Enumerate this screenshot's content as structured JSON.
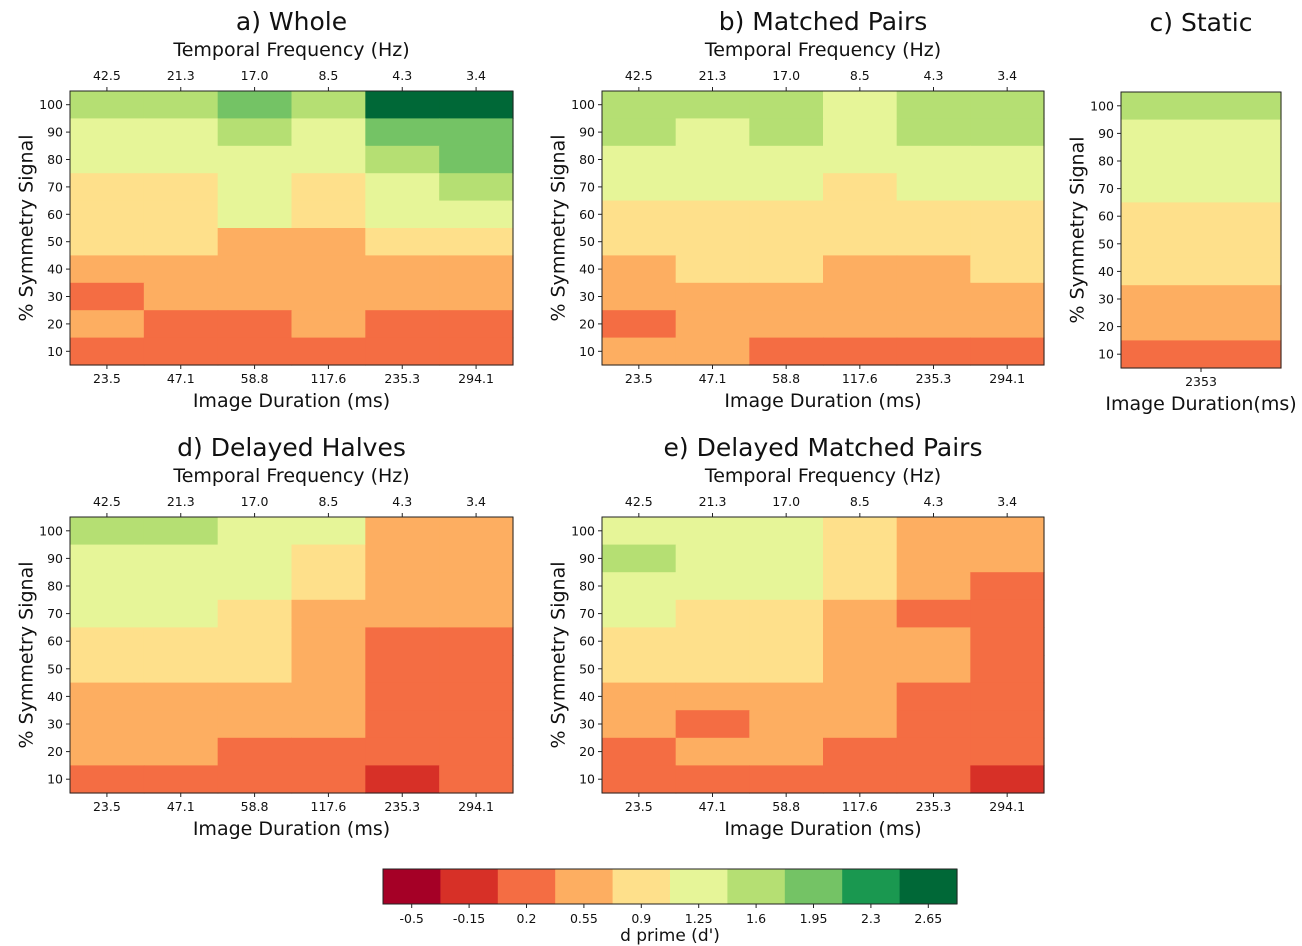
{
  "colormap": {
    "colors": [
      "#a50026",
      "#d73027",
      "#f46d43",
      "#fdae61",
      "#fee08b",
      "#e6f598",
      "#b5df73",
      "#74c365",
      "#1a9850",
      "#006837"
    ],
    "ticks": [
      "-0.5",
      "-0.15",
      "0.2",
      "0.55",
      "0.9",
      "1.25",
      "1.6",
      "1.95",
      "2.3",
      "2.65"
    ],
    "vmin": -0.675,
    "vmax": 2.825,
    "label": "d prime (d')"
  },
  "chart_data": [
    {
      "type": "heatmap",
      "title": "a) Whole",
      "top_xlabel": "Temporal Frequency (Hz)",
      "top_ticks": [
        "42.5",
        "21.3",
        "17.0",
        "8.5",
        "4.3",
        "3.4"
      ],
      "xlabel": "Image Duration (ms)",
      "x": [
        "23.5",
        "47.1",
        "58.8",
        "117.6",
        "235.3",
        "294.1"
      ],
      "ylabel": "% Symmetry Signal",
      "y": [
        100,
        90,
        80,
        70,
        60,
        50,
        40,
        30,
        20,
        10
      ],
      "values": [
        [
          1.45,
          1.5,
          1.85,
          1.75,
          2.65,
          2.65
        ],
        [
          1.3,
          1.3,
          1.55,
          1.3,
          1.95,
          2.0
        ],
        [
          1.1,
          1.2,
          1.3,
          1.25,
          1.6,
          1.85
        ],
        [
          1.05,
          0.95,
          1.25,
          0.95,
          1.3,
          1.45
        ],
        [
          0.85,
          0.8,
          1.2,
          0.75,
          1.15,
          1.15
        ],
        [
          0.8,
          0.75,
          0.7,
          0.65,
          0.95,
          0.95
        ],
        [
          0.6,
          0.65,
          0.7,
          0.7,
          0.7,
          0.7
        ],
        [
          0.35,
          0.55,
          0.6,
          0.65,
          0.45,
          0.5
        ],
        [
          0.4,
          0.25,
          0.3,
          0.4,
          0.3,
          0.3
        ],
        [
          0.15,
          0.2,
          0.3,
          0.1,
          0.1,
          0.1
        ]
      ]
    },
    {
      "type": "heatmap",
      "title": "b) Matched Pairs",
      "top_xlabel": "Temporal Frequency (Hz)",
      "top_ticks": [
        "42.5",
        "21.3",
        "17.0",
        "8.5",
        "4.3",
        "3.4"
      ],
      "xlabel": "Image Duration (ms)",
      "x": [
        "23.5",
        "47.1",
        "58.8",
        "117.6",
        "235.3",
        "294.1"
      ],
      "ylabel": "% Symmetry Signal",
      "y": [
        100,
        90,
        80,
        70,
        60,
        50,
        40,
        30,
        20,
        10
      ],
      "values": [
        [
          1.5,
          1.5,
          1.5,
          1.4,
          1.45,
          1.6
        ],
        [
          1.45,
          1.3,
          1.45,
          1.3,
          1.55,
          1.55
        ],
        [
          1.4,
          1.4,
          1.25,
          1.25,
          1.35,
          1.4
        ],
        [
          1.25,
          1.15,
          1.2,
          1.05,
          1.3,
          1.4
        ],
        [
          1.0,
          0.95,
          0.95,
          0.95,
          1.0,
          1.0
        ],
        [
          0.8,
          0.95,
          0.85,
          0.8,
          0.85,
          1.0
        ],
        [
          0.7,
          0.75,
          0.75,
          0.65,
          0.65,
          0.85
        ],
        [
          0.6,
          0.7,
          0.55,
          0.45,
          0.55,
          0.6
        ],
        [
          0.3,
          0.6,
          0.5,
          0.4,
          0.4,
          0.5
        ],
        [
          0.5,
          0.4,
          0.3,
          0.15,
          0.3,
          0.35
        ]
      ]
    },
    {
      "type": "heatmap",
      "title": "c) Static",
      "xlabel": "Image Duration(ms)",
      "x": [
        "2353"
      ],
      "ylabel": "% Symmetry Signal",
      "y": [
        100,
        90,
        80,
        70,
        60,
        50,
        40,
        30,
        20,
        10
      ],
      "values": [
        [
          1.45
        ],
        [
          1.4
        ],
        [
          1.4
        ],
        [
          1.15
        ],
        [
          1.0
        ],
        [
          0.75
        ],
        [
          0.8
        ],
        [
          0.5
        ],
        [
          0.55
        ],
        [
          0.15
        ]
      ]
    },
    {
      "type": "heatmap",
      "title": "d) Delayed Halves",
      "top_xlabel": "Temporal Frequency (Hz)",
      "top_ticks": [
        "42.5",
        "21.3",
        "17.0",
        "8.5",
        "4.3",
        "3.4"
      ],
      "xlabel": "Image Duration (ms)",
      "x": [
        "23.5",
        "47.1",
        "58.8",
        "117.6",
        "235.3",
        "294.1"
      ],
      "ylabel": "% Symmetry Signal",
      "y": [
        100,
        90,
        80,
        70,
        60,
        50,
        40,
        30,
        20,
        10
      ],
      "values": [
        [
          1.6,
          1.45,
          1.4,
          1.2,
          0.65,
          0.6
        ],
        [
          1.35,
          1.35,
          1.4,
          1.05,
          0.65,
          0.55
        ],
        [
          1.4,
          1.25,
          1.2,
          1.0,
          0.5,
          0.5
        ],
        [
          1.2,
          1.1,
          1.0,
          0.7,
          0.45,
          0.4
        ],
        [
          1.0,
          1.05,
          1.0,
          0.7,
          0.3,
          0.1
        ],
        [
          0.75,
          0.75,
          0.8,
          0.6,
          0.25,
          0.35
        ],
        [
          0.6,
          0.7,
          0.7,
          0.45,
          0.25,
          0.15
        ],
        [
          0.55,
          0.45,
          0.4,
          0.4,
          0.15,
          0.25
        ],
        [
          0.4,
          0.4,
          0.25,
          0.25,
          0.2,
          0.2
        ],
        [
          0.25,
          0.15,
          0.35,
          0.05,
          0.0,
          0.1
        ]
      ]
    },
    {
      "type": "heatmap",
      "title": "e) Delayed Matched Pairs",
      "top_xlabel": "Temporal Frequency (Hz)",
      "top_ticks": [
        "42.5",
        "21.3",
        "17.0",
        "8.5",
        "4.3",
        "3.4"
      ],
      "xlabel": "Image Duration (ms)",
      "x": [
        "23.5",
        "47.1",
        "58.8",
        "117.6",
        "235.3",
        "294.1"
      ],
      "ylabel": "% Symmetry Signal",
      "y": [
        100,
        90,
        80,
        70,
        60,
        50,
        40,
        30,
        20,
        10
      ],
      "values": [
        [
          1.35,
          1.4,
          1.4,
          1.0,
          0.6,
          0.55
        ],
        [
          1.6,
          1.3,
          1.3,
          0.85,
          0.65,
          0.6
        ],
        [
          1.4,
          1.3,
          1.2,
          0.8,
          0.6,
          0.3
        ],
        [
          1.2,
          1.0,
          0.9,
          0.7,
          0.35,
          0.15
        ],
        [
          0.9,
          0.85,
          0.9,
          0.7,
          0.55,
          0.3
        ],
        [
          0.8,
          0.8,
          0.9,
          0.6,
          0.4,
          0.15
        ],
        [
          0.6,
          0.6,
          0.5,
          0.45,
          0.3,
          0.15
        ],
        [
          0.55,
          0.3,
          0.45,
          0.4,
          0.2,
          0.2
        ],
        [
          0.35,
          0.4,
          0.4,
          0.25,
          0.1,
          0.05
        ],
        [
          0.1,
          0.15,
          0.2,
          0.2,
          0.2,
          0.0
        ]
      ]
    }
  ]
}
